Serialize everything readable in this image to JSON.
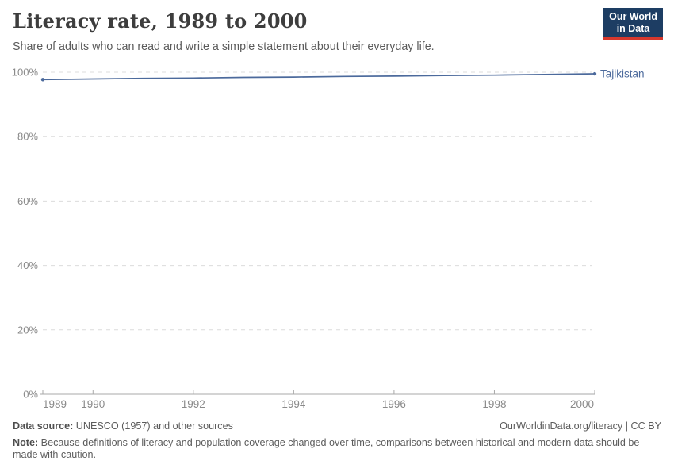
{
  "header": {
    "title": "Literacy rate, 1989 to 2000",
    "subtitle": "Share of adults who can read and write a simple statement about their everyday life."
  },
  "logo": {
    "line1": "Our World",
    "line2": "in Data",
    "bg_color": "#1d3d63",
    "accent_color": "#d7382d"
  },
  "chart_data": {
    "type": "line",
    "title": "Literacy rate, 1989 to 2000",
    "x": [
      1989,
      1990,
      1991,
      1992,
      1993,
      1994,
      1995,
      1996,
      1997,
      1998,
      1999,
      2000
    ],
    "series": [
      {
        "name": "Tajikistan",
        "color": "#4c6a9c",
        "values": [
          97.7,
          97.9,
          98.1,
          98.2,
          98.4,
          98.5,
          98.7,
          98.8,
          99.0,
          99.1,
          99.3,
          99.5
        ]
      }
    ],
    "xlabel": "",
    "ylabel": "",
    "xlim": [
      1989,
      2000
    ],
    "ylim": [
      0,
      100
    ],
    "xticks": [
      1989,
      1990,
      1992,
      1994,
      1996,
      1998,
      2000
    ],
    "yticks": [
      0,
      20,
      40,
      60,
      80,
      100
    ],
    "ytick_suffix": "%",
    "grid": "horizontal-dashed",
    "legend_position": "end-of-line-label"
  },
  "footer": {
    "data_source_label": "Data source:",
    "data_source_text": " UNESCO (1957) and other sources",
    "link_text": "OurWorldinData.org/literacy | CC BY",
    "note_label": "Note:",
    "note_text": " Because definitions of literacy and population coverage changed over time, comparisons between historical and modern data should be made with caution."
  },
  "colors": {
    "title": "#3d3d3d",
    "subtitle": "#5b5b5b",
    "tick_label": "#8a8a8a",
    "gridline": "#dcdcdc",
    "axis": "#a8a8a8",
    "footer_text": "#5c5c5c"
  }
}
